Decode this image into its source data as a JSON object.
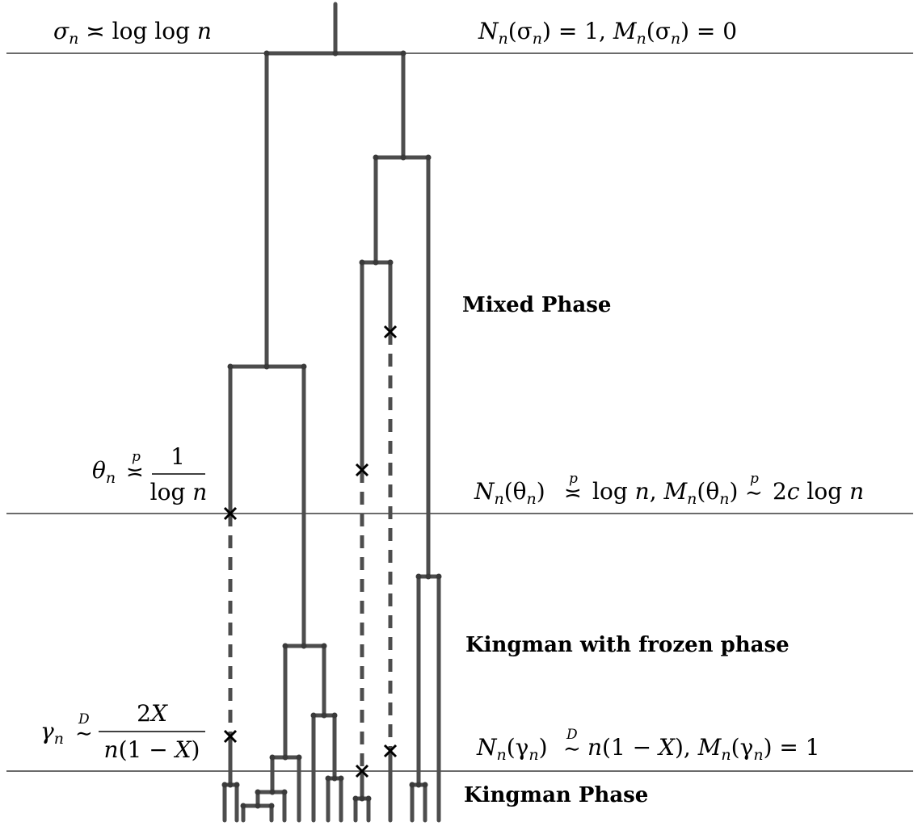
{
  "time_markers": {
    "sigma": {
      "left_parts": [
        "σ",
        "n",
        " ≍ log log ",
        "n"
      ],
      "right_parts": [
        "N",
        "n",
        "(σ",
        "n",
        ") = 1, ",
        "M",
        "n",
        "(σ",
        "n",
        ") = 0"
      ]
    },
    "theta": {
      "left_parts": [
        "θ",
        "n",
        "≍",
        "p",
        "1",
        "log ",
        "n"
      ],
      "right_parts": [
        "N",
        "n",
        "(θ",
        "n",
        ")",
        "≍",
        "p",
        "log ",
        "n",
        ", ",
        "M",
        "n",
        "(θ",
        "n",
        ")",
        "∼",
        "p",
        "2",
        "c",
        " log ",
        "n"
      ]
    },
    "gamma": {
      "left_parts": [
        "γ",
        "n",
        "∼",
        "D",
        "2",
        "X",
        "n",
        "(1 − ",
        "X",
        ")"
      ],
      "right_parts": [
        "N",
        "n",
        "(γ",
        "n",
        ")",
        "∼",
        "D",
        "n",
        "(1 − ",
        "X",
        "), ",
        "M",
        "n",
        "(γ",
        "n",
        ") = 1"
      ]
    }
  },
  "phases": {
    "mixed": "Mixed Phase",
    "frozen": "Kingman with frozen phase",
    "kingman": "Kingman Phase"
  }
}
